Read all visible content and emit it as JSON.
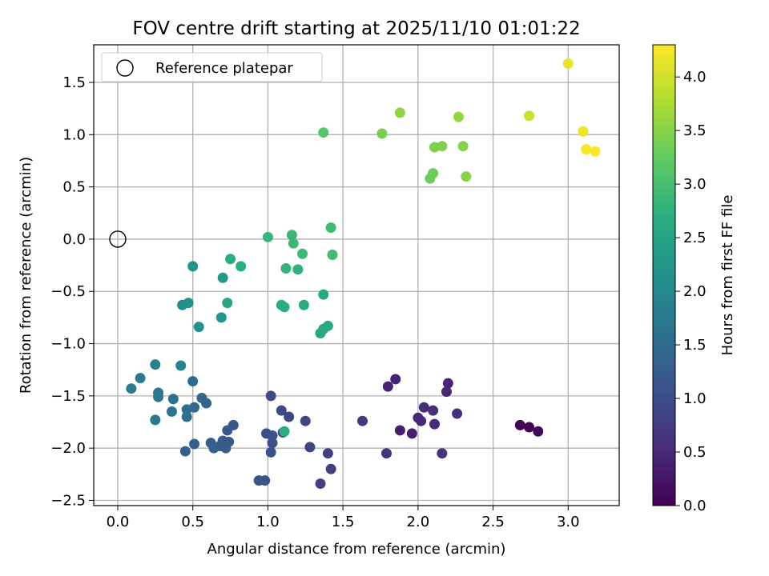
{
  "chart_data": {
    "type": "scatter",
    "title": "FOV centre drift starting at 2025/11/10 01:01:22",
    "xlabel": "Angular distance from reference (arcmin)",
    "ylabel": "Rotation from reference (arcmin)",
    "xlim": [
      -0.16,
      3.34
    ],
    "ylim": [
      -2.55,
      1.86
    ],
    "xticks": [
      0.0,
      0.5,
      1.0,
      1.5,
      2.0,
      2.5,
      3.0
    ],
    "xtick_labels": [
      "0.0",
      "0.5",
      "1.0",
      "1.5",
      "2.0",
      "2.5",
      "3.0"
    ],
    "yticks": [
      1.5,
      1.0,
      0.5,
      0.0,
      -0.5,
      -1.0,
      -1.5,
      -2.0,
      -2.5
    ],
    "ytick_labels": [
      "1.5",
      "1.0",
      "0.5",
      "0.0",
      "−0.5",
      "−1.0",
      "−1.5",
      "−2.0",
      "−2.5"
    ],
    "grid": true,
    "legend": {
      "position": "top-left",
      "label": "Reference platepar"
    },
    "reference_point": {
      "x": 0.0,
      "y": 0.0
    },
    "colorbar": {
      "label": "Hours from first FF file",
      "min": 0.0,
      "max": 4.3,
      "ticks": [
        0.0,
        0.5,
        1.0,
        1.5,
        2.0,
        2.5,
        3.0,
        3.5,
        4.0
      ],
      "tick_labels": [
        "0.0",
        "0.5",
        "1.0",
        "1.5",
        "2.0",
        "2.5",
        "3.0",
        "3.5",
        "4.0"
      ],
      "colormap": "viridis"
    },
    "points": [
      {
        "x": 2.68,
        "y": -1.78,
        "c": 0.02
      },
      {
        "x": 2.74,
        "y": -1.8,
        "c": 0.05
      },
      {
        "x": 2.8,
        "y": -1.84,
        "c": 0.08
      },
      {
        "x": 1.8,
        "y": -1.41,
        "c": 0.4
      },
      {
        "x": 1.85,
        "y": -1.34,
        "c": 0.42
      },
      {
        "x": 2.2,
        "y": -1.38,
        "c": 0.45
      },
      {
        "x": 2.19,
        "y": -1.46,
        "c": 0.47
      },
      {
        "x": 1.88,
        "y": -1.83,
        "c": 0.35
      },
      {
        "x": 1.96,
        "y": -1.86,
        "c": 0.38
      },
      {
        "x": 2.0,
        "y": -1.71,
        "c": 0.45
      },
      {
        "x": 2.02,
        "y": -1.74,
        "c": 0.48
      },
      {
        "x": 2.04,
        "y": -1.61,
        "c": 0.52
      },
      {
        "x": 2.1,
        "y": -1.64,
        "c": 0.55
      },
      {
        "x": 2.11,
        "y": -1.77,
        "c": 0.5
      },
      {
        "x": 2.26,
        "y": -1.67,
        "c": 0.58
      },
      {
        "x": 2.16,
        "y": -2.05,
        "c": 0.62
      },
      {
        "x": 1.79,
        "y": -2.05,
        "c": 0.65
      },
      {
        "x": 1.63,
        "y": -1.74,
        "c": 0.7
      },
      {
        "x": 1.4,
        "y": -2.05,
        "c": 0.78
      },
      {
        "x": 1.42,
        "y": -2.2,
        "c": 0.8
      },
      {
        "x": 1.35,
        "y": -2.34,
        "c": 0.82
      },
      {
        "x": 1.28,
        "y": -1.99,
        "c": 0.85
      },
      {
        "x": 1.25,
        "y": -1.74,
        "c": 0.88
      },
      {
        "x": 1.14,
        "y": -1.7,
        "c": 0.92
      },
      {
        "x": 1.09,
        "y": -1.64,
        "c": 0.95
      },
      {
        "x": 1.02,
        "y": -1.5,
        "c": 0.98
      },
      {
        "x": 1.1,
        "y": -1.85,
        "c": 1.0
      },
      {
        "x": 0.99,
        "y": -1.86,
        "c": 1.02
      },
      {
        "x": 1.03,
        "y": -1.88,
        "c": 1.04
      },
      {
        "x": 1.03,
        "y": -1.95,
        "c": 1.06
      },
      {
        "x": 1.02,
        "y": -2.04,
        "c": 1.08
      },
      {
        "x": 0.94,
        "y": -2.31,
        "c": 1.1
      },
      {
        "x": 0.98,
        "y": -2.31,
        "c": 1.12
      },
      {
        "x": 0.77,
        "y": -1.78,
        "c": 1.15
      },
      {
        "x": 0.73,
        "y": -1.83,
        "c": 1.18
      },
      {
        "x": 0.74,
        "y": -1.94,
        "c": 1.2
      },
      {
        "x": 0.7,
        "y": -1.93,
        "c": 1.22
      },
      {
        "x": 0.68,
        "y": -1.98,
        "c": 1.24
      },
      {
        "x": 0.72,
        "y": -2.0,
        "c": 1.26
      },
      {
        "x": 0.62,
        "y": -1.95,
        "c": 1.28
      },
      {
        "x": 0.64,
        "y": -2.0,
        "c": 1.3
      },
      {
        "x": 0.51,
        "y": -1.96,
        "c": 1.33
      },
      {
        "x": 0.45,
        "y": -2.03,
        "c": 1.36
      },
      {
        "x": 0.59,
        "y": -1.57,
        "c": 1.4
      },
      {
        "x": 0.56,
        "y": -1.52,
        "c": 1.43
      },
      {
        "x": 0.51,
        "y": -1.61,
        "c": 1.46
      },
      {
        "x": 0.5,
        "y": -1.36,
        "c": 1.5
      },
      {
        "x": 0.46,
        "y": -1.63,
        "c": 1.53
      },
      {
        "x": 0.46,
        "y": -1.7,
        "c": 1.56
      },
      {
        "x": 0.37,
        "y": -1.53,
        "c": 1.6
      },
      {
        "x": 0.36,
        "y": -1.65,
        "c": 1.63
      },
      {
        "x": 0.27,
        "y": -1.47,
        "c": 1.66
      },
      {
        "x": 0.27,
        "y": -1.51,
        "c": 1.7
      },
      {
        "x": 0.25,
        "y": -1.73,
        "c": 1.73
      },
      {
        "x": 0.15,
        "y": -1.33,
        "c": 1.76
      },
      {
        "x": 0.09,
        "y": -1.43,
        "c": 1.8
      },
      {
        "x": 0.25,
        "y": -1.2,
        "c": 1.85
      },
      {
        "x": 0.42,
        "y": -1.21,
        "c": 1.9
      },
      {
        "x": 1.11,
        "y": -1.84,
        "c": 2.7
      },
      {
        "x": 0.43,
        "y": -0.63,
        "c": 2.1
      },
      {
        "x": 0.47,
        "y": -0.61,
        "c": 2.13
      },
      {
        "x": 0.54,
        "y": -0.84,
        "c": 2.16
      },
      {
        "x": 0.5,
        "y": -0.26,
        "c": 2.2
      },
      {
        "x": 0.69,
        "y": -0.75,
        "c": 2.25
      },
      {
        "x": 0.7,
        "y": -0.37,
        "c": 2.3
      },
      {
        "x": 0.73,
        "y": -0.61,
        "c": 2.5
      },
      {
        "x": 0.75,
        "y": -0.19,
        "c": 2.65
      },
      {
        "x": 0.82,
        "y": -0.26,
        "c": 2.7
      },
      {
        "x": 1.35,
        "y": -0.9,
        "c": 2.55
      },
      {
        "x": 1.37,
        "y": -0.86,
        "c": 2.58
      },
      {
        "x": 1.4,
        "y": -0.83,
        "c": 2.6
      },
      {
        "x": 1.37,
        "y": -0.53,
        "c": 2.62
      },
      {
        "x": 1.24,
        "y": -0.63,
        "c": 2.65
      },
      {
        "x": 1.09,
        "y": -0.63,
        "c": 2.68
      },
      {
        "x": 1.11,
        "y": -0.65,
        "c": 2.7
      },
      {
        "x": 1.2,
        "y": -0.29,
        "c": 2.75
      },
      {
        "x": 1.12,
        "y": -0.28,
        "c": 2.78
      },
      {
        "x": 1.0,
        "y": 0.02,
        "c": 2.82
      },
      {
        "x": 1.16,
        "y": 0.04,
        "c": 2.85
      },
      {
        "x": 1.17,
        "y": -0.04,
        "c": 2.88
      },
      {
        "x": 1.23,
        "y": -0.14,
        "c": 2.9
      },
      {
        "x": 1.42,
        "y": 0.11,
        "c": 2.92
      },
      {
        "x": 1.43,
        "y": -0.15,
        "c": 2.95
      },
      {
        "x": 1.37,
        "y": 1.02,
        "c": 3.15
      },
      {
        "x": 2.08,
        "y": 0.58,
        "c": 3.3
      },
      {
        "x": 2.1,
        "y": 0.63,
        "c": 3.32
      },
      {
        "x": 1.76,
        "y": 1.01,
        "c": 3.4
      },
      {
        "x": 2.11,
        "y": 0.88,
        "c": 3.42
      },
      {
        "x": 2.16,
        "y": 0.89,
        "c": 3.45
      },
      {
        "x": 2.3,
        "y": 0.89,
        "c": 3.47
      },
      {
        "x": 2.32,
        "y": 0.6,
        "c": 3.5
      },
      {
        "x": 1.88,
        "y": 1.21,
        "c": 3.55
      },
      {
        "x": 2.27,
        "y": 1.17,
        "c": 3.6
      },
      {
        "x": 2.74,
        "y": 1.18,
        "c": 3.95
      },
      {
        "x": 3.0,
        "y": 1.68,
        "c": 4.15
      },
      {
        "x": 3.1,
        "y": 1.03,
        "c": 4.2
      },
      {
        "x": 3.12,
        "y": 0.86,
        "c": 4.25
      },
      {
        "x": 3.18,
        "y": 0.84,
        "c": 4.28
      }
    ]
  }
}
